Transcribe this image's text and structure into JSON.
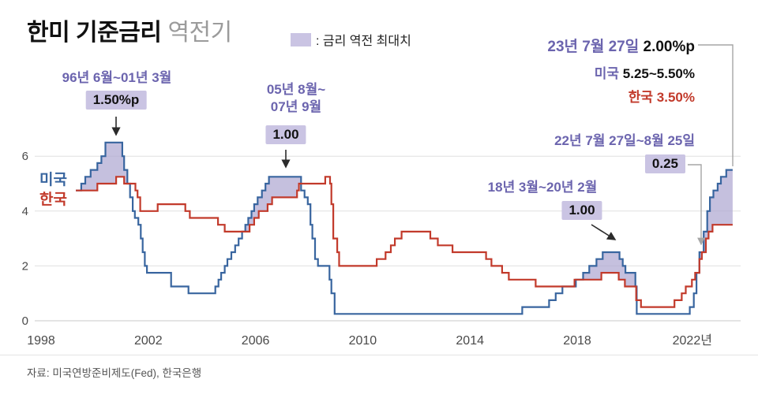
{
  "title": {
    "main": "한미 기준금리",
    "sub": "역전기"
  },
  "legend": {
    "label": ": 금리 역전 최대치"
  },
  "series_labels": {
    "us": "미국",
    "kr": "한국"
  },
  "annotations": {
    "period1": {
      "label": "96년 6월~01년 3월",
      "value": "1.50%p"
    },
    "period2": {
      "label_line1": "05년 8월~",
      "label_line2": "07년 9월",
      "value": "1.00"
    },
    "period3": {
      "label": "18년 3월~20년 2월",
      "value": "1.00"
    },
    "period4": {
      "label": "22년 7월 27일~8월 25일",
      "value": "0.25"
    },
    "latest": {
      "date": "23년 7월 27일",
      "gap": "2.00%p",
      "us_label": "미국",
      "us_value": "5.25~5.50%",
      "kr_label": "한국",
      "kr_value": "3.50%"
    }
  },
  "source": "자료: 미국연방준비제도(Fed), 한국은행",
  "colors": {
    "us": "#38659f",
    "kr": "#c23a2b",
    "inversion_fill": "#b2abd3",
    "annotation_purple": "#6b64ae",
    "value_box_bg": "#cac4e3",
    "grid": "#e0e0e0",
    "grid_zero": "#c9c9c9",
    "axis_text": "#4a4a4a",
    "title_sub": "#9b9b9b"
  },
  "chart_data": {
    "type": "line",
    "step": true,
    "title": "한미 기준금리 역전기",
    "xlabel": "",
    "ylabel": "",
    "legend_position": "on-chart-left",
    "grid": "horizontal-only",
    "x_tick_years": [
      1998,
      2002,
      2006,
      2010,
      2014,
      2018,
      2022
    ],
    "x_tick_labels": [
      "1998",
      "2002",
      "2006",
      "2010",
      "2014",
      "2018",
      "2022년"
    ],
    "y_ticks": [
      0,
      2,
      4,
      6
    ],
    "xlim": [
      1997.7,
      2023.9
    ],
    "ylim": [
      0,
      7.3
    ],
    "x_end": 2023.8,
    "inversion_rule": "shade region where 미국 rate > 한국 rate (금리 역전)",
    "series": [
      {
        "name": "미국",
        "color": "#38659f",
        "points": [
          [
            1999.3,
            4.75
          ],
          [
            1999.5,
            5.0
          ],
          [
            1999.65,
            5.25
          ],
          [
            1999.85,
            5.5
          ],
          [
            2000.1,
            5.75
          ],
          [
            2000.25,
            6.0
          ],
          [
            2000.4,
            6.5
          ],
          [
            2001.03,
            6.0
          ],
          [
            2001.1,
            5.5
          ],
          [
            2001.22,
            5.0
          ],
          [
            2001.32,
            4.5
          ],
          [
            2001.42,
            4.0
          ],
          [
            2001.5,
            3.75
          ],
          [
            2001.63,
            3.5
          ],
          [
            2001.72,
            3.0
          ],
          [
            2001.79,
            2.5
          ],
          [
            2001.87,
            2.0
          ],
          [
            2001.95,
            1.75
          ],
          [
            2002.85,
            1.25
          ],
          [
            2003.5,
            1.0
          ],
          [
            2004.5,
            1.25
          ],
          [
            2004.62,
            1.5
          ],
          [
            2004.72,
            1.75
          ],
          [
            2004.85,
            2.0
          ],
          [
            2004.95,
            2.25
          ],
          [
            2005.1,
            2.5
          ],
          [
            2005.24,
            2.75
          ],
          [
            2005.37,
            3.0
          ],
          [
            2005.5,
            3.25
          ],
          [
            2005.62,
            3.5
          ],
          [
            2005.73,
            3.75
          ],
          [
            2005.85,
            4.0
          ],
          [
            2005.95,
            4.25
          ],
          [
            2006.08,
            4.5
          ],
          [
            2006.24,
            4.75
          ],
          [
            2006.37,
            5.0
          ],
          [
            2006.5,
            5.25
          ],
          [
            2007.7,
            4.75
          ],
          [
            2007.83,
            4.5
          ],
          [
            2007.95,
            4.25
          ],
          [
            2008.05,
            3.5
          ],
          [
            2008.12,
            3.0
          ],
          [
            2008.22,
            2.25
          ],
          [
            2008.33,
            2.0
          ],
          [
            2008.76,
            1.5
          ],
          [
            2008.83,
            1.0
          ],
          [
            2008.95,
            0.25
          ],
          [
            2015.95,
            0.5
          ],
          [
            2016.95,
            0.75
          ],
          [
            2017.2,
            1.0
          ],
          [
            2017.45,
            1.25
          ],
          [
            2017.95,
            1.5
          ],
          [
            2018.22,
            1.75
          ],
          [
            2018.45,
            2.0
          ],
          [
            2018.72,
            2.25
          ],
          [
            2018.95,
            2.5
          ],
          [
            2019.58,
            2.25
          ],
          [
            2019.7,
            2.0
          ],
          [
            2019.8,
            1.75
          ],
          [
            2020.17,
            1.25
          ],
          [
            2020.22,
            0.25
          ],
          [
            2022.2,
            0.5
          ],
          [
            2022.35,
            1.0
          ],
          [
            2022.45,
            1.75
          ],
          [
            2022.56,
            2.5
          ],
          [
            2022.72,
            3.25
          ],
          [
            2022.85,
            4.0
          ],
          [
            2022.95,
            4.5
          ],
          [
            2023.08,
            4.75
          ],
          [
            2023.24,
            5.0
          ],
          [
            2023.36,
            5.25
          ],
          [
            2023.56,
            5.5
          ]
        ]
      },
      {
        "name": "한국",
        "color": "#c23a2b",
        "points": [
          [
            1999.3,
            4.75
          ],
          [
            2000.1,
            5.0
          ],
          [
            2000.8,
            5.25
          ],
          [
            2001.1,
            5.0
          ],
          [
            2001.52,
            4.75
          ],
          [
            2001.6,
            4.5
          ],
          [
            2001.7,
            4.0
          ],
          [
            2002.35,
            4.25
          ],
          [
            2003.38,
            4.0
          ],
          [
            2003.55,
            3.75
          ],
          [
            2004.6,
            3.5
          ],
          [
            2004.85,
            3.25
          ],
          [
            2005.78,
            3.5
          ],
          [
            2005.95,
            3.75
          ],
          [
            2006.12,
            4.0
          ],
          [
            2006.45,
            4.25
          ],
          [
            2006.62,
            4.5
          ],
          [
            2007.55,
            4.75
          ],
          [
            2007.62,
            5.0
          ],
          [
            2008.6,
            5.25
          ],
          [
            2008.78,
            5.0
          ],
          [
            2008.83,
            4.25
          ],
          [
            2008.9,
            3.0
          ],
          [
            2009.05,
            2.5
          ],
          [
            2009.12,
            2.0
          ],
          [
            2010.52,
            2.25
          ],
          [
            2010.85,
            2.5
          ],
          [
            2011.05,
            2.75
          ],
          [
            2011.2,
            3.0
          ],
          [
            2011.45,
            3.25
          ],
          [
            2012.52,
            3.0
          ],
          [
            2012.8,
            2.75
          ],
          [
            2013.35,
            2.5
          ],
          [
            2014.6,
            2.25
          ],
          [
            2014.8,
            2.0
          ],
          [
            2015.2,
            1.75
          ],
          [
            2015.45,
            1.5
          ],
          [
            2016.45,
            1.25
          ],
          [
            2017.9,
            1.5
          ],
          [
            2018.9,
            1.75
          ],
          [
            2019.55,
            1.5
          ],
          [
            2019.78,
            1.25
          ],
          [
            2020.2,
            0.75
          ],
          [
            2020.38,
            0.5
          ],
          [
            2021.63,
            0.75
          ],
          [
            2021.9,
            1.0
          ],
          [
            2022.05,
            1.25
          ],
          [
            2022.28,
            1.5
          ],
          [
            2022.4,
            1.75
          ],
          [
            2022.56,
            2.25
          ],
          [
            2022.65,
            2.5
          ],
          [
            2022.8,
            3.0
          ],
          [
            2022.9,
            3.25
          ],
          [
            2023.05,
            3.5
          ]
        ]
      }
    ]
  }
}
